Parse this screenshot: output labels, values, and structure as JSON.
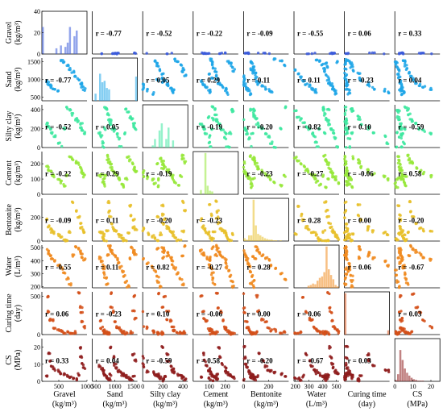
{
  "chart_data": {
    "type": "scatter-matrix",
    "variables": [
      {
        "key": "gravel",
        "label": [
          "Gravel",
          "(kg/m³)"
        ],
        "color": "#3b5bdb",
        "range": [
          200,
          1000
        ],
        "xticks": [
          500,
          1000
        ],
        "yticks": [
          0,
          20,
          40
        ],
        "ylim": [
          0,
          40
        ]
      },
      {
        "key": "sand",
        "label": [
          "Sand",
          "(kg/m³)"
        ],
        "color": "#1fa6e8",
        "range": [
          400,
          1600
        ],
        "xticks": [
          500,
          1000,
          1500
        ],
        "yticks": [
          500,
          1000,
          1500
        ],
        "ylim": [
          400,
          1600
        ]
      },
      {
        "key": "siltyclay",
        "label": [
          "Silty clay",
          "(kg/m³)"
        ],
        "color": "#3ee8a0",
        "range": [
          0,
          450
        ],
        "xticks": [
          0,
          200,
          400
        ],
        "yticks": [
          0,
          200,
          400
        ],
        "ylim": [
          0,
          450
        ]
      },
      {
        "key": "cement",
        "label": [
          "Cement",
          "(kg/m³)"
        ],
        "color": "#96e83a",
        "range": [
          0,
          280
        ],
        "xticks": [
          100,
          200
        ],
        "yticks": [
          0,
          100,
          200
        ],
        "ylim": [
          0,
          280
        ]
      },
      {
        "key": "bentonite",
        "label": [
          "Bentonite",
          "(kg/m³)"
        ],
        "color": "#e8c02a",
        "range": [
          0,
          360
        ],
        "xticks": [
          0,
          200
        ],
        "yticks": [
          0,
          200
        ],
        "ylim": [
          0,
          360
        ]
      },
      {
        "key": "water",
        "label": [
          "Water",
          "(L/m³)"
        ],
        "color": "#f08a1e",
        "range": [
          190,
          520
        ],
        "xticks": [
          200,
          300,
          400,
          500
        ],
        "yticks": [
          200,
          300,
          400,
          500
        ],
        "ylim": [
          190,
          520
        ]
      },
      {
        "key": "curing",
        "label": [
          "Curing time",
          "(day)"
        ],
        "color": "#d4501a",
        "range": [
          0,
          560
        ],
        "xticks": [],
        "yticks": [
          0,
          500
        ],
        "ylim": [
          0,
          560
        ]
      },
      {
        "key": "cs",
        "label": [
          "CS",
          "(MPa)"
        ],
        "color": "#8e1c1c",
        "range": [
          0,
          25
        ],
        "xticks": [
          0,
          10,
          20
        ],
        "yticks": [
          0,
          10,
          20
        ],
        "ylim": [
          0,
          25
        ]
      }
    ],
    "ylabel_lines": [
      [
        "Gravel",
        "(kg/m³)"
      ],
      [
        "Sand",
        "(kg/m³)"
      ],
      [
        "Silty clay",
        "(kg/m³)"
      ],
      [
        "Cement",
        "(kg/m³)"
      ],
      [
        "Bentonite",
        "(kg/m³)"
      ],
      [
        "Water",
        "(L/m³)"
      ],
      [
        "Curing time",
        "(day)"
      ],
      [
        "CS",
        "(MPa)"
      ]
    ],
    "xlabel_lines": [
      [
        "Gravel",
        "(kg/m³)"
      ],
      [
        "Sand",
        "(kg/m³)"
      ],
      [
        "Silty clay",
        "(kg/m³)"
      ],
      [
        "Cement",
        "(kg/m³)"
      ],
      [
        "Bentonite",
        "(kg/m³)"
      ],
      [
        "Water",
        "(L/m³)"
      ],
      [
        "Curing time",
        "(day)"
      ],
      [
        "CS",
        "(MPa)"
      ]
    ],
    "correlations": [
      [
        null,
        "-0.77",
        "-0.52",
        "-0.22",
        "-0.09",
        "-0.55",
        "0.06",
        "0.33"
      ],
      [
        "-0.77",
        null,
        "0.05",
        "0.29",
        "0.11",
        "0.11",
        "-0.23",
        "0.04"
      ],
      [
        "-0.52",
        "0.05",
        null,
        "-0.19",
        "-0.20",
        "0.82",
        "0.10",
        "-0.59"
      ],
      [
        "-0.22",
        "0.29",
        "-0.19",
        null,
        "-0.23",
        "-0.27",
        "-0.06",
        "0.58"
      ],
      [
        "-0.09",
        "0.11",
        "-0.20",
        "-0.23",
        null,
        "0.28",
        "0.00",
        "-0.20"
      ],
      [
        "-0.55",
        "0.11",
        "0.82",
        "-0.27",
        "0.28",
        null,
        "0.06",
        "-0.67"
      ],
      [
        "0.06",
        "-0.23",
        "0.10",
        "-0.06",
        "0.00",
        "0.06",
        null,
        "0.03"
      ],
      [
        "0.33",
        "0.04",
        "-0.59",
        "0.58",
        "-0.20",
        "-0.67",
        "0.03",
        null
      ]
    ],
    "r_prefix": "r = ",
    "histograms": [
      [
        38,
        0,
        0,
        0,
        0,
        0,
        8,
        0,
        12,
        0,
        10,
        16,
        38,
        0,
        25,
        33,
        0,
        0,
        0,
        0
      ],
      [
        0,
        10,
        0,
        38,
        26,
        28,
        18,
        16,
        0,
        0,
        0,
        0,
        0,
        0,
        0,
        0,
        0,
        0,
        0,
        34
      ],
      [
        0,
        0,
        0,
        0,
        3,
        12,
        0,
        24,
        34,
        0,
        12,
        28,
        0,
        10,
        0,
        0,
        0,
        0,
        0,
        0
      ],
      [
        0,
        0,
        0,
        6,
        0,
        58,
        12,
        5,
        4,
        0,
        0,
        0,
        0,
        0,
        0,
        0,
        0,
        0,
        0,
        0
      ],
      [
        4,
        2,
        8,
        8,
        58,
        22,
        10,
        8,
        6,
        4,
        3,
        2,
        2,
        1,
        1,
        0,
        1,
        0,
        0,
        0
      ],
      [
        0,
        0,
        0,
        0,
        0,
        0,
        3,
        4,
        6,
        5,
        10,
        14,
        16,
        22,
        58,
        26,
        18,
        12,
        4,
        2
      ],
      [
        58,
        0,
        0,
        0,
        0,
        0,
        0,
        0,
        0,
        0,
        0,
        0,
        0,
        0,
        0,
        0,
        0,
        0,
        0,
        6
      ],
      [
        2,
        10,
        44,
        30,
        18,
        12,
        8,
        5,
        3,
        2,
        1,
        1,
        1,
        0,
        0,
        0,
        0,
        0,
        0,
        0
      ]
    ],
    "hist_max": 60,
    "sample_levels": {
      "gravel": [
        0,
        0,
        0,
        0,
        0,
        0,
        0,
        0,
        300,
        320,
        350,
        380,
        420,
        500,
        550,
        600,
        650,
        700,
        750,
        800,
        850,
        900,
        900,
        920,
        950
      ],
      "sand": [
        600,
        650,
        700,
        700,
        720,
        750,
        800,
        820,
        850,
        880,
        900,
        950,
        1000,
        1050,
        1100,
        1150,
        1200,
        1250,
        1300,
        1350,
        1400,
        1450,
        1500,
        1500,
        1550
      ],
      "siltyclay": [
        0,
        0,
        0,
        50,
        100,
        120,
        150,
        150,
        180,
        200,
        200,
        220,
        250,
        250,
        280,
        300,
        300,
        320,
        350,
        380,
        400,
        400,
        420,
        150,
        200
      ],
      "cement": [
        50,
        60,
        70,
        80,
        100,
        100,
        110,
        120,
        120,
        130,
        140,
        150,
        150,
        160,
        170,
        180,
        200,
        200,
        210,
        220,
        230,
        240,
        250,
        100,
        120
      ],
      "bentonite": [
        0,
        0,
        0,
        10,
        20,
        30,
        40,
        50,
        60,
        70,
        80,
        80,
        90,
        100,
        110,
        120,
        150,
        180,
        200,
        220,
        250,
        300,
        330,
        60,
        80
      ],
      "water": [
        200,
        220,
        240,
        260,
        280,
        300,
        320,
        340,
        350,
        360,
        380,
        400,
        410,
        420,
        430,
        440,
        450,
        460,
        470,
        480,
        490,
        500,
        510,
        420,
        440
      ],
      "curing": [
        7,
        7,
        7,
        14,
        14,
        28,
        28,
        28,
        28,
        56,
        56,
        60,
        90,
        90,
        100,
        180,
        180,
        200,
        300,
        300,
        360,
        500,
        540,
        28,
        28
      ],
      "cs": [
        0.5,
        1,
        1.5,
        2,
        2,
        2.5,
        3,
        3,
        3.5,
        4,
        4,
        5,
        5,
        6,
        6,
        7,
        8,
        9,
        10,
        12,
        14,
        16,
        20,
        3,
        4
      ]
    }
  }
}
